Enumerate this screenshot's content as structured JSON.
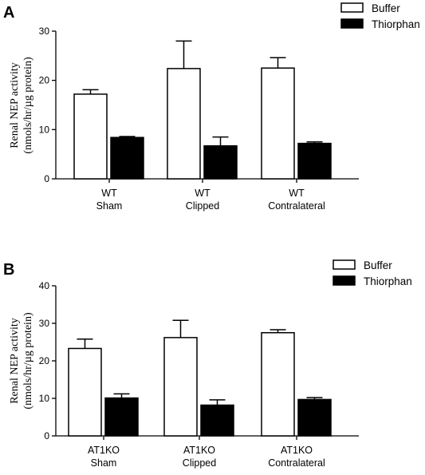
{
  "chart_data": [
    {
      "type": "bar",
      "panel": "A",
      "ylabel": [
        "Renal NEP activity",
        "(nmols/hr/µg protein)"
      ],
      "ylim": [
        0,
        30
      ],
      "yticks": [
        0,
        10,
        20,
        30
      ],
      "categories": [
        [
          "WT",
          "Sham"
        ],
        [
          "WT",
          "Clipped"
        ],
        [
          "WT",
          "Contralateral"
        ]
      ],
      "series": [
        {
          "name": "Buffer",
          "color": "#ffffff",
          "values": [
            17.2,
            22.4,
            22.5
          ],
          "errors": [
            0.9,
            5.6,
            2.1
          ]
        },
        {
          "name": "Thiorphan",
          "color": "#000000",
          "values": [
            8.4,
            6.7,
            7.2
          ],
          "errors": [
            0.2,
            1.8,
            0.3
          ]
        }
      ],
      "legend": "top-right",
      "grid": false
    },
    {
      "type": "bar",
      "panel": "B",
      "ylabel": [
        "Renal NEP activity",
        "(nmols/hr/µg protein)"
      ],
      "ylim": [
        0,
        40
      ],
      "yticks": [
        0,
        10,
        20,
        30,
        40
      ],
      "categories": [
        [
          "AT1KO",
          "Sham"
        ],
        [
          "AT1KO",
          "Clipped"
        ],
        [
          "AT1KO",
          "Contralateral"
        ]
      ],
      "series": [
        {
          "name": "Buffer",
          "color": "#ffffff",
          "values": [
            23.3,
            26.2,
            27.5
          ],
          "errors": [
            2.5,
            4.6,
            0.8
          ]
        },
        {
          "name": "Thiorphan",
          "color": "#000000",
          "values": [
            10.1,
            8.2,
            9.7
          ],
          "errors": [
            1.1,
            1.4,
            0.5
          ]
        }
      ],
      "legend": "top-right",
      "grid": false
    }
  ]
}
